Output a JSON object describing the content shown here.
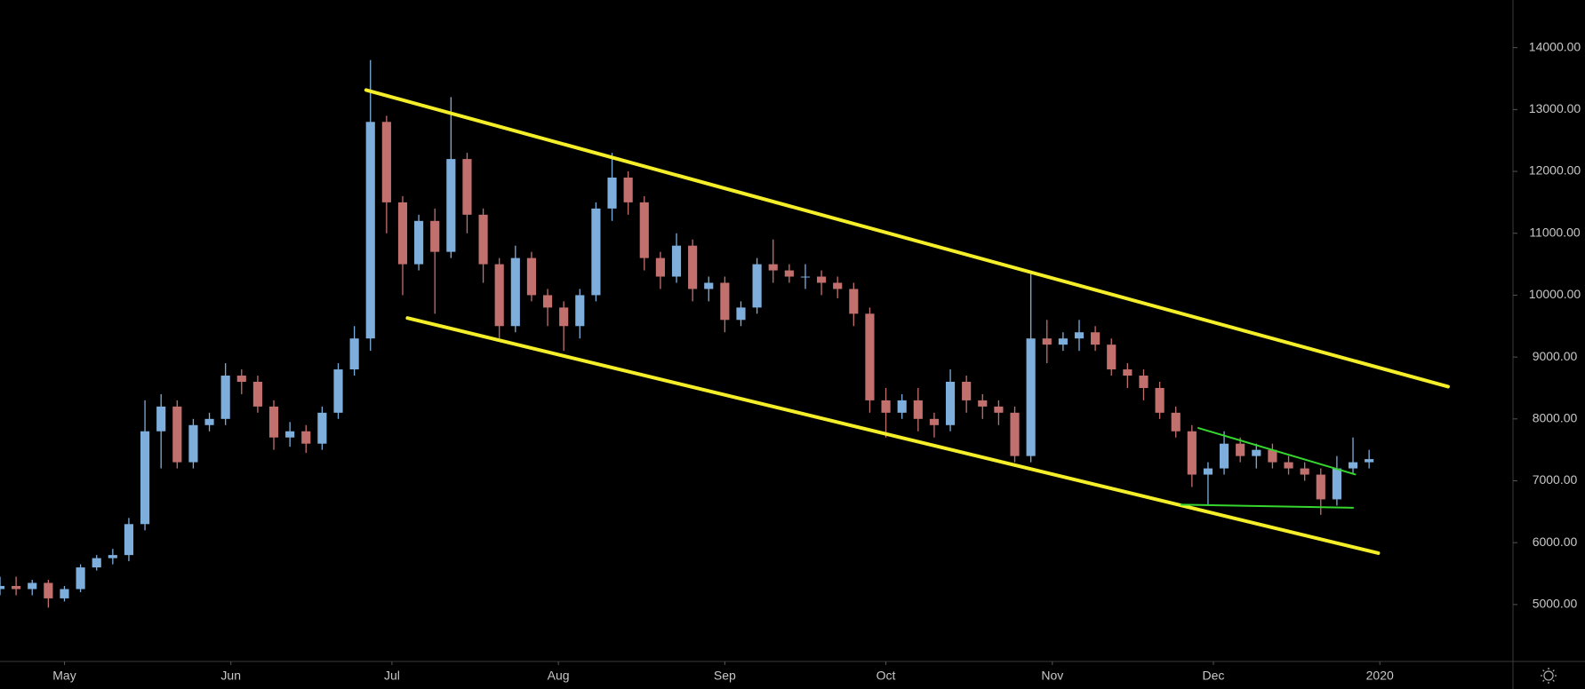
{
  "chart_data": {
    "type": "candlestick",
    "x": [
      0,
      3,
      6,
      9,
      12,
      15,
      18,
      21,
      24,
      27,
      30,
      33,
      36,
      39,
      42,
      45,
      48,
      51,
      54,
      57,
      60,
      63,
      66,
      69,
      72,
      75,
      78,
      81,
      84,
      87,
      90,
      93,
      96,
      99,
      102,
      105,
      108,
      111,
      114,
      117,
      120,
      123,
      126,
      129,
      132,
      135,
      138,
      141,
      144,
      147,
      150,
      153,
      156,
      159,
      162,
      165,
      168,
      171,
      174,
      177,
      180,
      183,
      186,
      189,
      192,
      195,
      198,
      201,
      204,
      207,
      210,
      213,
      216,
      219,
      222,
      225,
      228,
      231,
      234,
      237,
      240,
      243,
      246,
      249,
      252,
      255
    ],
    "open": [
      5250,
      5300,
      5250,
      5350,
      5100,
      5250,
      5600,
      5750,
      5800,
      6300,
      7800,
      8200,
      7300,
      7900,
      8000,
      8700,
      8600,
      8200,
      7700,
      7800,
      7600,
      8100,
      8800,
      9300,
      12800,
      11500,
      10500,
      11200,
      10700,
      12200,
      11300,
      10500,
      9500,
      10600,
      10000,
      9800,
      9500,
      10000,
      11400,
      11900,
      11500,
      10600,
      10300,
      10800,
      10100,
      10200,
      9600,
      9800,
      10500,
      10400,
      10300,
      10300,
      10200,
      10100,
      9700,
      8300,
      8100,
      8300,
      8000,
      7900,
      8600,
      8300,
      8200,
      8100,
      7400,
      9300,
      9200,
      9300,
      9400,
      9200,
      8800,
      8700,
      8500,
      8100,
      7800,
      7100,
      7200,
      7600,
      7400,
      7500,
      7300,
      7200,
      7100,
      6700,
      7200,
      7300
    ],
    "high": [
      5450,
      5450,
      5400,
      5400,
      5300,
      5650,
      5800,
      5900,
      6400,
      8300,
      8400,
      8300,
      8000,
      8100,
      8900,
      8800,
      8700,
      8300,
      7950,
      7900,
      8200,
      8900,
      9500,
      13800,
      12900,
      11600,
      11300,
      11400,
      13200,
      12300,
      11400,
      10600,
      10800,
      10700,
      10100,
      9900,
      10100,
      11500,
      12300,
      12000,
      11600,
      10700,
      11000,
      10900,
      10300,
      10300,
      9900,
      10600,
      10900,
      10500,
      10500,
      10400,
      10300,
      10200,
      9800,
      8500,
      8400,
      8500,
      8100,
      8800,
      8700,
      8400,
      8300,
      8200,
      10400,
      9600,
      9400,
      9600,
      9500,
      9300,
      8900,
      8800,
      8600,
      8200,
      7900,
      7300,
      7800,
      7700,
      7600,
      7600,
      7400,
      7300,
      7200,
      7400,
      7700,
      7500
    ],
    "low": [
      5150,
      5150,
      5150,
      4950,
      5050,
      5200,
      5550,
      5650,
      5700,
      6200,
      7200,
      7200,
      7200,
      7800,
      7900,
      8400,
      8100,
      7500,
      7550,
      7450,
      7500,
      8000,
      8700,
      9100,
      11000,
      10000,
      10400,
      9700,
      10600,
      11000,
      10200,
      9300,
      9400,
      9900,
      9500,
      9100,
      9300,
      9900,
      11200,
      11300,
      10400,
      10100,
      10200,
      9900,
      9900,
      9400,
      9500,
      9700,
      10200,
      10200,
      10100,
      10000,
      9950,
      9500,
      8100,
      7700,
      8000,
      7800,
      7700,
      7800,
      8100,
      8000,
      7900,
      7300,
      7300,
      8900,
      9100,
      9100,
      9100,
      8700,
      8500,
      8300,
      8000,
      7700,
      6900,
      6600,
      7100,
      7300,
      7200,
      7200,
      7100,
      7000,
      6450,
      6600,
      7100,
      7200
    ],
    "close": [
      5300,
      5250,
      5350,
      5100,
      5250,
      5600,
      5750,
      5800,
      6300,
      7800,
      8200,
      7300,
      7900,
      8000,
      8700,
      8600,
      8200,
      7700,
      7800,
      7600,
      8100,
      8800,
      9300,
      12800,
      11500,
      10500,
      11200,
      10700,
      12200,
      11300,
      10500,
      9500,
      10600,
      10000,
      9800,
      9500,
      10000,
      11400,
      11900,
      11500,
      10600,
      10300,
      10800,
      10100,
      10200,
      9600,
      9800,
      10500,
      10400,
      10300,
      10300,
      10200,
      10100,
      9700,
      8300,
      8100,
      8300,
      8000,
      7900,
      8600,
      8300,
      8200,
      8100,
      7400,
      9300,
      9200,
      9300,
      9400,
      9200,
      8800,
      8700,
      8500,
      8100,
      7800,
      7100,
      7200,
      7600,
      7400,
      7500,
      7300,
      7200,
      7100,
      6700,
      7200,
      7300,
      7350
    ],
    "up_color": "#7eaedc",
    "down_color": "#c2706e",
    "xlim": [
      0,
      281.8
    ],
    "xticks": [
      {
        "value": 12,
        "label": "May"
      },
      {
        "value": 43,
        "label": "Jun"
      },
      {
        "value": 73,
        "label": "Jul"
      },
      {
        "value": 104,
        "label": "Aug"
      },
      {
        "value": 135,
        "label": "Sep"
      },
      {
        "value": 165,
        "label": "Oct"
      },
      {
        "value": 196,
        "label": "Nov"
      },
      {
        "value": 226,
        "label": "Dec"
      },
      {
        "value": 257,
        "label": "2020"
      }
    ],
    "ylim": [
      4080,
      14770
    ],
    "yticks": [
      {
        "value": 5000,
        "label": "5000.00"
      },
      {
        "value": 6000,
        "label": "6000.00"
      },
      {
        "value": 7000,
        "label": "7000.00"
      },
      {
        "value": 8000,
        "label": "8000.00"
      },
      {
        "value": 9000,
        "label": "9000.00"
      },
      {
        "value": 10000,
        "label": "10000.00"
      },
      {
        "value": 11000,
        "label": "11000.00"
      },
      {
        "value": 12000,
        "label": "12000.00"
      },
      {
        "value": 13000,
        "label": "13000.00"
      },
      {
        "value": 14000,
        "label": "14000.00"
      }
    ],
    "grid": false,
    "trendlines": [
      {
        "color": "#f5ef2a",
        "x": [
          68.2,
          269.7
        ],
        "y": [
          13315,
          8522
        ]
      },
      {
        "color": "#f5ef2a",
        "x": [
          75.9,
          256.7
        ],
        "y": [
          9630,
          5831
        ]
      },
      {
        "color": "#35d62e",
        "x": [
          223.2,
          252.4
        ],
        "y": [
          7853,
          7103
        ]
      },
      {
        "color": "#35d62e",
        "x": [
          220,
          252
        ],
        "y": [
          6614,
          6565
        ]
      }
    ]
  }
}
